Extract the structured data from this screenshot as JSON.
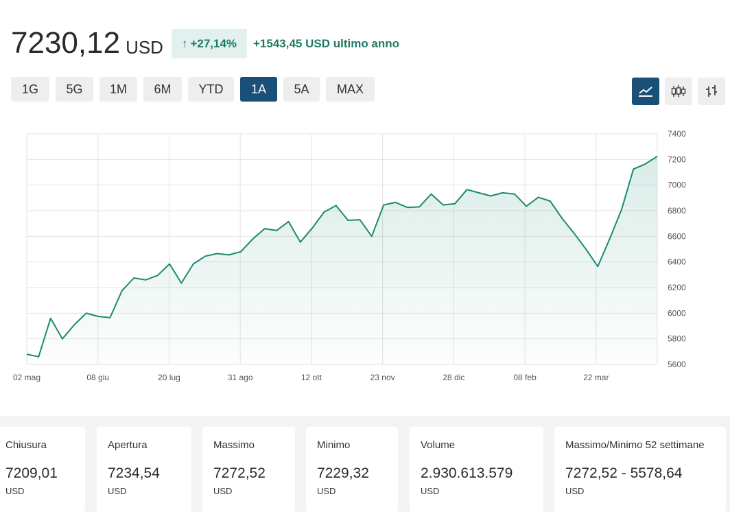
{
  "header": {
    "price": "7230,12",
    "currency": "USD",
    "change_arrow": "↑",
    "change_percent": "+27,14%",
    "change_text": "+1543,45 USD ultimo anno"
  },
  "ranges": [
    {
      "label": "1G",
      "active": false
    },
    {
      "label": "5G",
      "active": false
    },
    {
      "label": "1M",
      "active": false
    },
    {
      "label": "6M",
      "active": false
    },
    {
      "label": "YTD",
      "active": false
    },
    {
      "label": "1A",
      "active": true
    },
    {
      "label": "5A",
      "active": false
    },
    {
      "label": "MAX",
      "active": false
    }
  ],
  "views": [
    {
      "icon": "line-chart-icon",
      "active": true
    },
    {
      "icon": "candlestick-icon",
      "active": false
    },
    {
      "icon": "ohlc-bars-icon",
      "active": false
    }
  ],
  "colors": {
    "accent": "#1a4f78",
    "positive": "#1d7a64",
    "line": "#1a8a6e"
  },
  "chart_data": {
    "type": "area",
    "x_labels": [
      "02 mag",
      "08 giu",
      "20 lug",
      "31 ago",
      "12 ott",
      "23 nov",
      "28 dic",
      "08 feb",
      "22 mar"
    ],
    "ylim": [
      5600,
      7400
    ],
    "y_ticks": [
      7400,
      7200,
      7000,
      6800,
      6600,
      6400,
      6200,
      6000,
      5800,
      5600
    ],
    "grid": true,
    "values": [
      5680,
      5660,
      5960,
      5800,
      5910,
      6000,
      5975,
      5965,
      6175,
      6275,
      6260,
      6295,
      6385,
      6235,
      6385,
      6445,
      6465,
      6455,
      6480,
      6580,
      6660,
      6645,
      6715,
      6555,
      6665,
      6790,
      6840,
      6725,
      6730,
      6600,
      6845,
      6865,
      6825,
      6830,
      6930,
      6845,
      6855,
      6965,
      6940,
      6915,
      6940,
      6930,
      6835,
      6905,
      6875,
      6740,
      6625,
      6500,
      6365,
      6580,
      6810,
      7125,
      7165,
      7225
    ]
  },
  "stats": [
    {
      "label": "Chiusura",
      "value": "7209,01",
      "unit": "USD"
    },
    {
      "label": "Apertura",
      "value": "7234,54",
      "unit": "USD"
    },
    {
      "label": "Massimo",
      "value": "7272,52",
      "unit": "USD"
    },
    {
      "label": "Minimo",
      "value": "7229,32",
      "unit": "USD"
    },
    {
      "label": "Volume",
      "value": "2.930.613.579",
      "unit": "USD"
    },
    {
      "label": "Massimo/Minimo 52 settimane",
      "value": "7272,52 - 5578,64",
      "unit": "USD"
    }
  ]
}
